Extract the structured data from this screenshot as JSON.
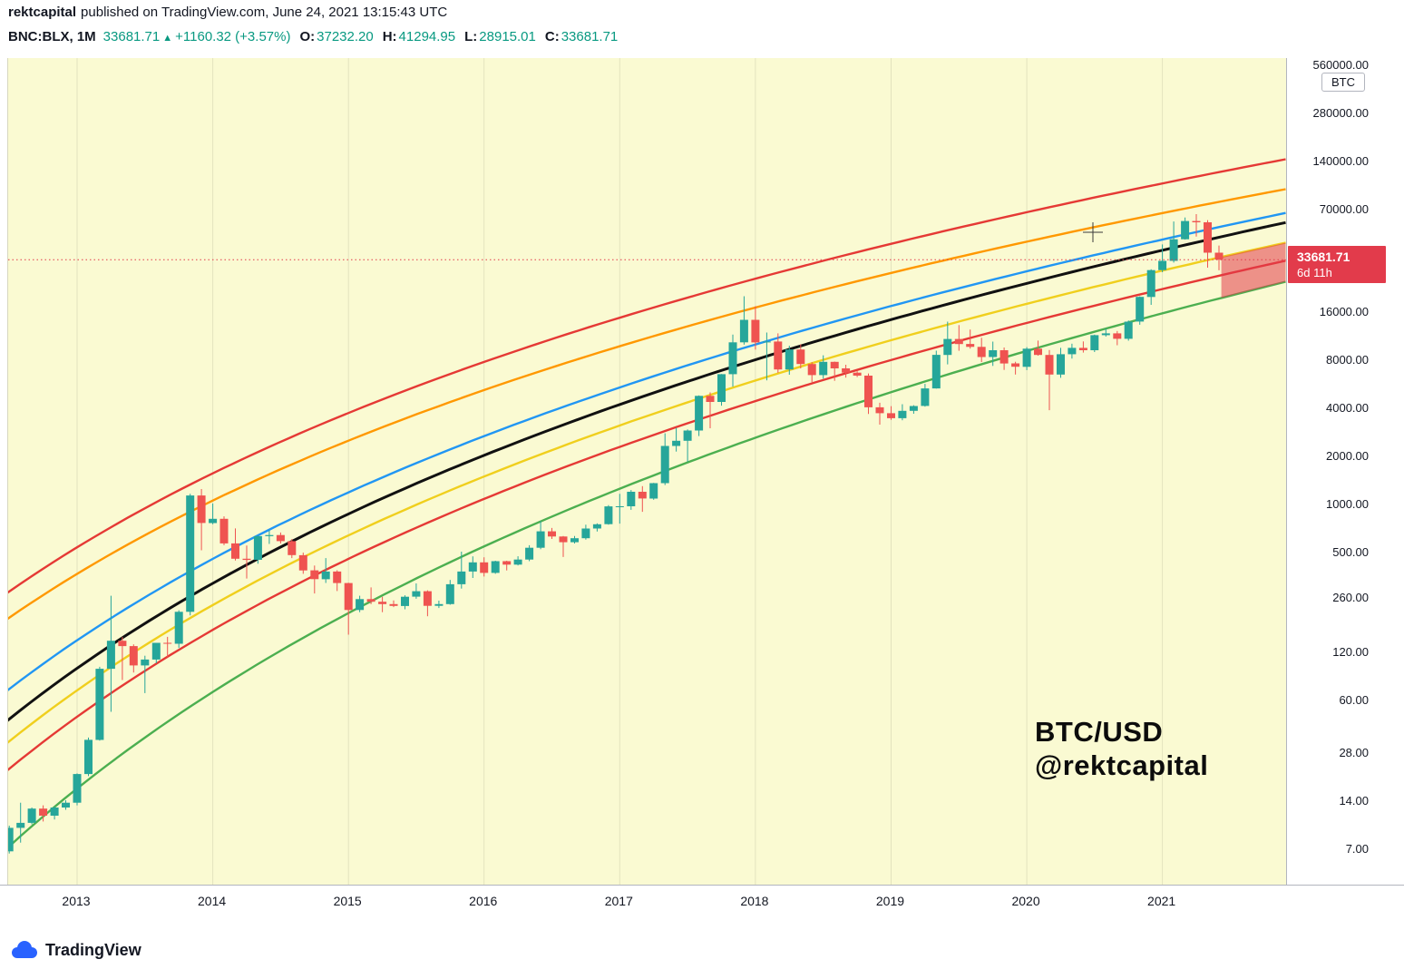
{
  "header": {
    "author": "rektcapital",
    "publish_text": "published on TradingView.com, June 24, 2021 13:15:43 UTC",
    "symbol": "BNC:BLX, 1M",
    "last": "33681.71",
    "up_arrow": "▲",
    "change": "+1160.32 (+3.57%)",
    "ohlc": [
      {
        "k": "O:",
        "v": "37232.20"
      },
      {
        "k": "H:",
        "v": "41294.95"
      },
      {
        "k": "L:",
        "v": "28915.01"
      },
      {
        "k": "C:",
        "v": "33681.71"
      }
    ]
  },
  "watermark": {
    "line1": "BTC/USD",
    "line2": "@rektcapital"
  },
  "axis": {
    "currency_label": "BTC",
    "price_ticks": [
      {
        "label": "560000.00",
        "value": 560000
      },
      {
        "label": "280000.00",
        "value": 280000
      },
      {
        "label": "140000.00",
        "value": 140000
      },
      {
        "label": "70000.00",
        "value": 70000
      },
      {
        "label": "16000.00",
        "value": 16000
      },
      {
        "label": "8000.00",
        "value": 8000
      },
      {
        "label": "4000.00",
        "value": 4000
      },
      {
        "label": "2000.00",
        "value": 2000
      },
      {
        "label": "1000.00",
        "value": 1000
      },
      {
        "label": "500.00",
        "value": 500
      },
      {
        "label": "260.00",
        "value": 260
      },
      {
        "label": "120.00",
        "value": 120
      },
      {
        "label": "60.00",
        "value": 60
      },
      {
        "label": "28.00",
        "value": 28
      },
      {
        "label": "14.00",
        "value": 14
      },
      {
        "label": "7.00",
        "value": 7
      }
    ],
    "years": [
      2013,
      2014,
      2015,
      2016,
      2017,
      2018,
      2019,
      2020,
      2021
    ],
    "price_badge": {
      "price": "33681.71",
      "countdown": "6d 11h",
      "value": 33681.71,
      "color": "#e23b4b"
    }
  },
  "footer": {
    "brand": "TradingView"
  },
  "colors": {
    "up": "#26a69a",
    "down": "#ef5350",
    "bg": "#FAFAD2"
  },
  "chart_data": {
    "type": "candlestick",
    "symbol": "BTC/USD (BNC:BLX)",
    "timeframe": "1M",
    "scale": "log",
    "ylim": [
      7,
      560000
    ],
    "candle_format": [
      "month",
      "open",
      "high",
      "low",
      "close"
    ],
    "candles": [
      [
        "2012-07",
        6.7,
        9.7,
        6.5,
        9.4
      ],
      [
        "2012-08",
        9.4,
        13.5,
        7.6,
        10.1
      ],
      [
        "2012-09",
        10.1,
        12.6,
        9.9,
        12.4
      ],
      [
        "2012-10",
        12.4,
        13.0,
        10.3,
        11.2
      ],
      [
        "2012-11",
        11.2,
        12.8,
        10.6,
        12.6
      ],
      [
        "2012-12",
        12.6,
        14.0,
        12.2,
        13.5
      ],
      [
        "2013-01",
        13.5,
        20.6,
        13.0,
        20.4
      ],
      [
        "2013-02",
        20.4,
        34.5,
        19.8,
        33.4
      ],
      [
        "2013-03",
        33.4,
        95.7,
        33.0,
        93.0
      ],
      [
        "2013-04",
        93.0,
        266.0,
        50.0,
        139.2
      ],
      [
        "2013-05",
        139.2,
        146.9,
        79.0,
        128.8
      ],
      [
        "2013-06",
        128.8,
        132.1,
        88.1,
        97.5
      ],
      [
        "2013-07",
        97.5,
        112.2,
        65.5,
        106.2
      ],
      [
        "2013-08",
        106.2,
        135.1,
        100.6,
        135.0
      ],
      [
        "2013-09",
        135.0,
        147.3,
        110.0,
        133.4
      ],
      [
        "2013-10",
        133.4,
        216.0,
        125.6,
        211.2
      ],
      [
        "2013-11",
        211.2,
        1156.0,
        200.4,
        1127.4
      ],
      [
        "2013-12",
        1127.4,
        1237.6,
        512.0,
        758.3
      ],
      [
        "2014-01",
        758.3,
        1005.0,
        745.0,
        806.1
      ],
      [
        "2014-02",
        806.1,
        835.0,
        551.0,
        565.6
      ],
      [
        "2014-03",
        565.6,
        702.0,
        442.0,
        453.8
      ],
      [
        "2014-04",
        453.8,
        548.0,
        341.0,
        446.4
      ],
      [
        "2014-05",
        446.4,
        632.0,
        422.0,
        627.9
      ],
      [
        "2014-06",
        627.9,
        683.0,
        561.0,
        638.1
      ],
      [
        "2014-07",
        638.1,
        662.0,
        565.0,
        584.3
      ],
      [
        "2014-08",
        584.3,
        602.0,
        458.0,
        477.6
      ],
      [
        "2014-09",
        477.6,
        495.0,
        365.0,
        383.6
      ],
      [
        "2014-10",
        383.6,
        411.0,
        275.0,
        338.0
      ],
      [
        "2014-11",
        338.0,
        458.0,
        320.0,
        377.5
      ],
      [
        "2014-12",
        377.5,
        384.0,
        285.0,
        319.7
      ],
      [
        "2015-01",
        319.7,
        321.0,
        152.0,
        216.9
      ],
      [
        "2015-02",
        216.9,
        266.0,
        210.0,
        253.7
      ],
      [
        "2015-03",
        253.7,
        300.0,
        236.0,
        244.2
      ],
      [
        "2015-04",
        244.2,
        262.0,
        210.0,
        235.9
      ],
      [
        "2015-05",
        235.9,
        249.0,
        226.0,
        229.8
      ],
      [
        "2015-06",
        229.8,
        268.0,
        219.0,
        262.5
      ],
      [
        "2015-07",
        262.5,
        318.0,
        255.0,
        284.0
      ],
      [
        "2015-08",
        284.0,
        288.0,
        198.0,
        230.1
      ],
      [
        "2015-09",
        230.1,
        248.0,
        223.0,
        236.0
      ],
      [
        "2015-10",
        236.0,
        334.0,
        234.0,
        314.2
      ],
      [
        "2015-11",
        314.2,
        502.0,
        295.0,
        377.3
      ],
      [
        "2015-12",
        377.3,
        469.0,
        344.0,
        430.6
      ],
      [
        "2016-01",
        430.6,
        463.0,
        351.0,
        369.8
      ],
      [
        "2016-02",
        369.8,
        441.0,
        365.0,
        437.7
      ],
      [
        "2016-03",
        437.7,
        441.0,
        383.0,
        416.7
      ],
      [
        "2016-04",
        416.7,
        470.0,
        412.0,
        448.3
      ],
      [
        "2016-05",
        448.3,
        551.0,
        438.0,
        531.4
      ],
      [
        "2016-06",
        531.4,
        781.0,
        520.0,
        673.3
      ],
      [
        "2016-07",
        673.3,
        706.0,
        603.0,
        624.7
      ],
      [
        "2016-08",
        624.7,
        630.0,
        465.0,
        575.5
      ],
      [
        "2016-09",
        575.5,
        629.0,
        565.0,
        609.7
      ],
      [
        "2016-10",
        609.7,
        740.0,
        598.0,
        700.9
      ],
      [
        "2016-11",
        700.9,
        755.0,
        671.0,
        745.7
      ],
      [
        "2016-12",
        745.7,
        982.0,
        740.0,
        963.7
      ],
      [
        "2017-01",
        963.7,
        1155.0,
        752.0,
        965.5
      ],
      [
        "2017-02",
        965.5,
        1220.0,
        917.0,
        1189.3
      ],
      [
        "2017-03",
        1189.3,
        1290.0,
        891.0,
        1079.1
      ],
      [
        "2017-04",
        1079.1,
        1352.0,
        1061.0,
        1347.9
      ],
      [
        "2017-05",
        1347.9,
        2760.0,
        1311.0,
        2303.3
      ],
      [
        "2017-06",
        2303.3,
        2985.0,
        2123.0,
        2480.6
      ],
      [
        "2017-07",
        2480.6,
        2920.0,
        1835.0,
        2875.3
      ],
      [
        "2017-08",
        2875.3,
        4765.0,
        2653.0,
        4735.1
      ],
      [
        "2017-09",
        4735.1,
        4975.0,
        2972.0,
        4338.7
      ],
      [
        "2017-10",
        4338.7,
        6483.0,
        4110.0,
        6468.4
      ],
      [
        "2017-11",
        6468.4,
        11441.0,
        5411.0,
        10233.6
      ],
      [
        "2017-12",
        10233.6,
        19891.0,
        9910.0,
        14156.4
      ],
      [
        "2018-01",
        14156.4,
        17234.0,
        9222.0,
        10221.1
      ],
      [
        "2018-02",
        10221.1,
        11786.0,
        5922.0,
        10360.8
      ],
      [
        "2018-03",
        10360.8,
        11660.0,
        6600.0,
        6928.8
      ],
      [
        "2018-04",
        6928.8,
        9759.0,
        6425.0,
        9240.4
      ],
      [
        "2018-05",
        9240.4,
        9964.0,
        7041.0,
        7494.2
      ],
      [
        "2018-06",
        7494.2,
        7692.0,
        5780.0,
        6390.1
      ],
      [
        "2018-07",
        6390.1,
        8491.0,
        6070.0,
        7729.4
      ],
      [
        "2018-08",
        7729.4,
        7760.0,
        5880.0,
        7033.8
      ],
      [
        "2018-09",
        7033.8,
        7410.0,
        6160.0,
        6617.2
      ],
      [
        "2018-10",
        6617.2,
        6755.0,
        6205.0,
        6341.3
      ],
      [
        "2018-11",
        6341.3,
        6542.0,
        3652.0,
        4017.3
      ],
      [
        "2018-12",
        4017.3,
        4289.0,
        3128.0,
        3689.6
      ],
      [
        "2019-01",
        3689.6,
        4087.0,
        3349.0,
        3434.1
      ],
      [
        "2019-02",
        3434.1,
        4198.0,
        3331.0,
        3816.6
      ],
      [
        "2019-03",
        3816.6,
        4140.0,
        3662.0,
        4092.5
      ],
      [
        "2019-04",
        4092.5,
        5627.0,
        4052.0,
        5269.9
      ],
      [
        "2019-05",
        5269.9,
        9074.0,
        5255.0,
        8545.7
      ],
      [
        "2019-06",
        8545.7,
        13796.0,
        7451.0,
        10752.9
      ],
      [
        "2019-07",
        10752.9,
        13129.0,
        9071.0,
        9999.2
      ],
      [
        "2019-08",
        9999.2,
        12316.0,
        9352.0,
        9588.4
      ],
      [
        "2019-09",
        9588.4,
        10924.0,
        7714.0,
        8284.3
      ],
      [
        "2019-10",
        8284.3,
        10350.0,
        7293.0,
        9140.9
      ],
      [
        "2019-11",
        9140.9,
        9505.0,
        6881.0,
        7556.2
      ],
      [
        "2019-12",
        7556.2,
        7743.0,
        6435.0,
        7195.2
      ],
      [
        "2020-01",
        7195.2,
        9553.0,
        6863.0,
        9349.1
      ],
      [
        "2020-02",
        9349.1,
        10495.0,
        8445.0,
        8543.7
      ],
      [
        "2020-03",
        8543.7,
        9167.0,
        3850.0,
        6438.6
      ],
      [
        "2020-04",
        6438.6,
        9460.0,
        6140.0,
        8629.0
      ],
      [
        "2020-05",
        8629.0,
        10045.0,
        8101.0,
        9454.8
      ],
      [
        "2020-06",
        9454.8,
        10380.0,
        8833.0,
        9138.1
      ],
      [
        "2020-07",
        9138.1,
        11441.0,
        8901.0,
        11351.6
      ],
      [
        "2020-08",
        11351.6,
        12473.0,
        11111.0,
        11655.0
      ],
      [
        "2020-09",
        11655.0,
        12050.0,
        9825.0,
        10779.6
      ],
      [
        "2020-10",
        10779.6,
        14028.0,
        10481.0,
        13797.3
      ],
      [
        "2020-11",
        13797.3,
        19863.0,
        13200.0,
        19698.1
      ],
      [
        "2020-12",
        19698.1,
        29321.0,
        17572.0,
        28990.1
      ],
      [
        "2021-01",
        28990.1,
        41950.0,
        28130.0,
        33108.1
      ],
      [
        "2021-02",
        33108.1,
        58352.0,
        32296.0,
        45164.0
      ],
      [
        "2021-03",
        45164.0,
        61844.0,
        44950.0,
        58763.7
      ],
      [
        "2021-04",
        58763.7,
        64863.0,
        46930.0,
        57720.3
      ],
      [
        "2021-05",
        57720.3,
        59500.0,
        30000.0,
        37253.8
      ],
      [
        "2021-06",
        37232.2,
        41294.95,
        28915.01,
        33681.71
      ]
    ],
    "curves": [
      {
        "name": "upper-red-band",
        "color": "#e53935",
        "p_start": 255,
        "p_end": 143000
      },
      {
        "name": "orange-band",
        "color": "#ff9800",
        "p_start": 175,
        "p_end": 93000
      },
      {
        "name": "blue-band",
        "color": "#2196f3",
        "p_start": 62,
        "p_end": 66000
      },
      {
        "name": "black-band",
        "color": "#111111",
        "p_start": 40,
        "p_end": 57500
      },
      {
        "name": "yellow-band",
        "color": "#f0cf1d",
        "p_start": 29,
        "p_end": 43000
      },
      {
        "name": "lower-red-band",
        "color": "#e53935",
        "p_start": 19.5,
        "p_end": 33200
      },
      {
        "name": "green-band",
        "color": "#4caf50",
        "p_start": 6.3,
        "p_end": 24500
      }
    ],
    "zone": {
      "name": "correction-zone",
      "from": "2021-05",
      "upper_curve": "yellow-band",
      "lower_curve": "green-band",
      "color": "rgba(226,59,75,0.55)"
    },
    "crosshair": {
      "x": 1196,
      "y": 192
    },
    "current_price_line": 33681.71
  }
}
